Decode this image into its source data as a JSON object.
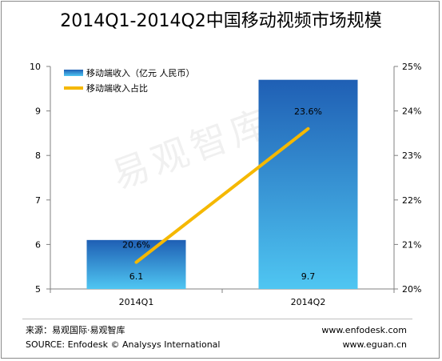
{
  "title": "2014Q1-2014Q2中国移动视频市场规模",
  "watermark": "易观智库",
  "footer": {
    "source_cn": "来源：易观国际·易观智库",
    "source_en": "SOURCE: Enfodesk © Analysys International",
    "url1": "www.enfodesk.com",
    "url2": "www.eguan.cn"
  },
  "colors": {
    "bar_top": "#1f5fb4",
    "bar_bottom": "#4fc6f2",
    "line": "#f5b800",
    "axis": "#808080"
  },
  "chart_data": {
    "type": "bar",
    "categories": [
      "2014Q1",
      "2014Q2"
    ],
    "series": [
      {
        "name": "移动端收入（亿元 人民币）",
        "type": "bar",
        "axis": "left",
        "values": [
          6.1,
          9.7
        ],
        "labels": [
          "6.1",
          "9.7"
        ]
      },
      {
        "name": "移动端收入占比",
        "type": "line",
        "axis": "right",
        "values": [
          20.6,
          23.6
        ],
        "labels": [
          "20.6%",
          "23.6%"
        ]
      }
    ],
    "y_left": {
      "min": 5,
      "max": 10,
      "ticks": [
        "5",
        "6",
        "7",
        "8",
        "9",
        "10"
      ]
    },
    "y_right": {
      "min": 20,
      "max": 25,
      "ticks": [
        "20%",
        "21%",
        "22%",
        "23%",
        "24%",
        "25%"
      ]
    },
    "legend_position": "top-left",
    "grid": false
  }
}
